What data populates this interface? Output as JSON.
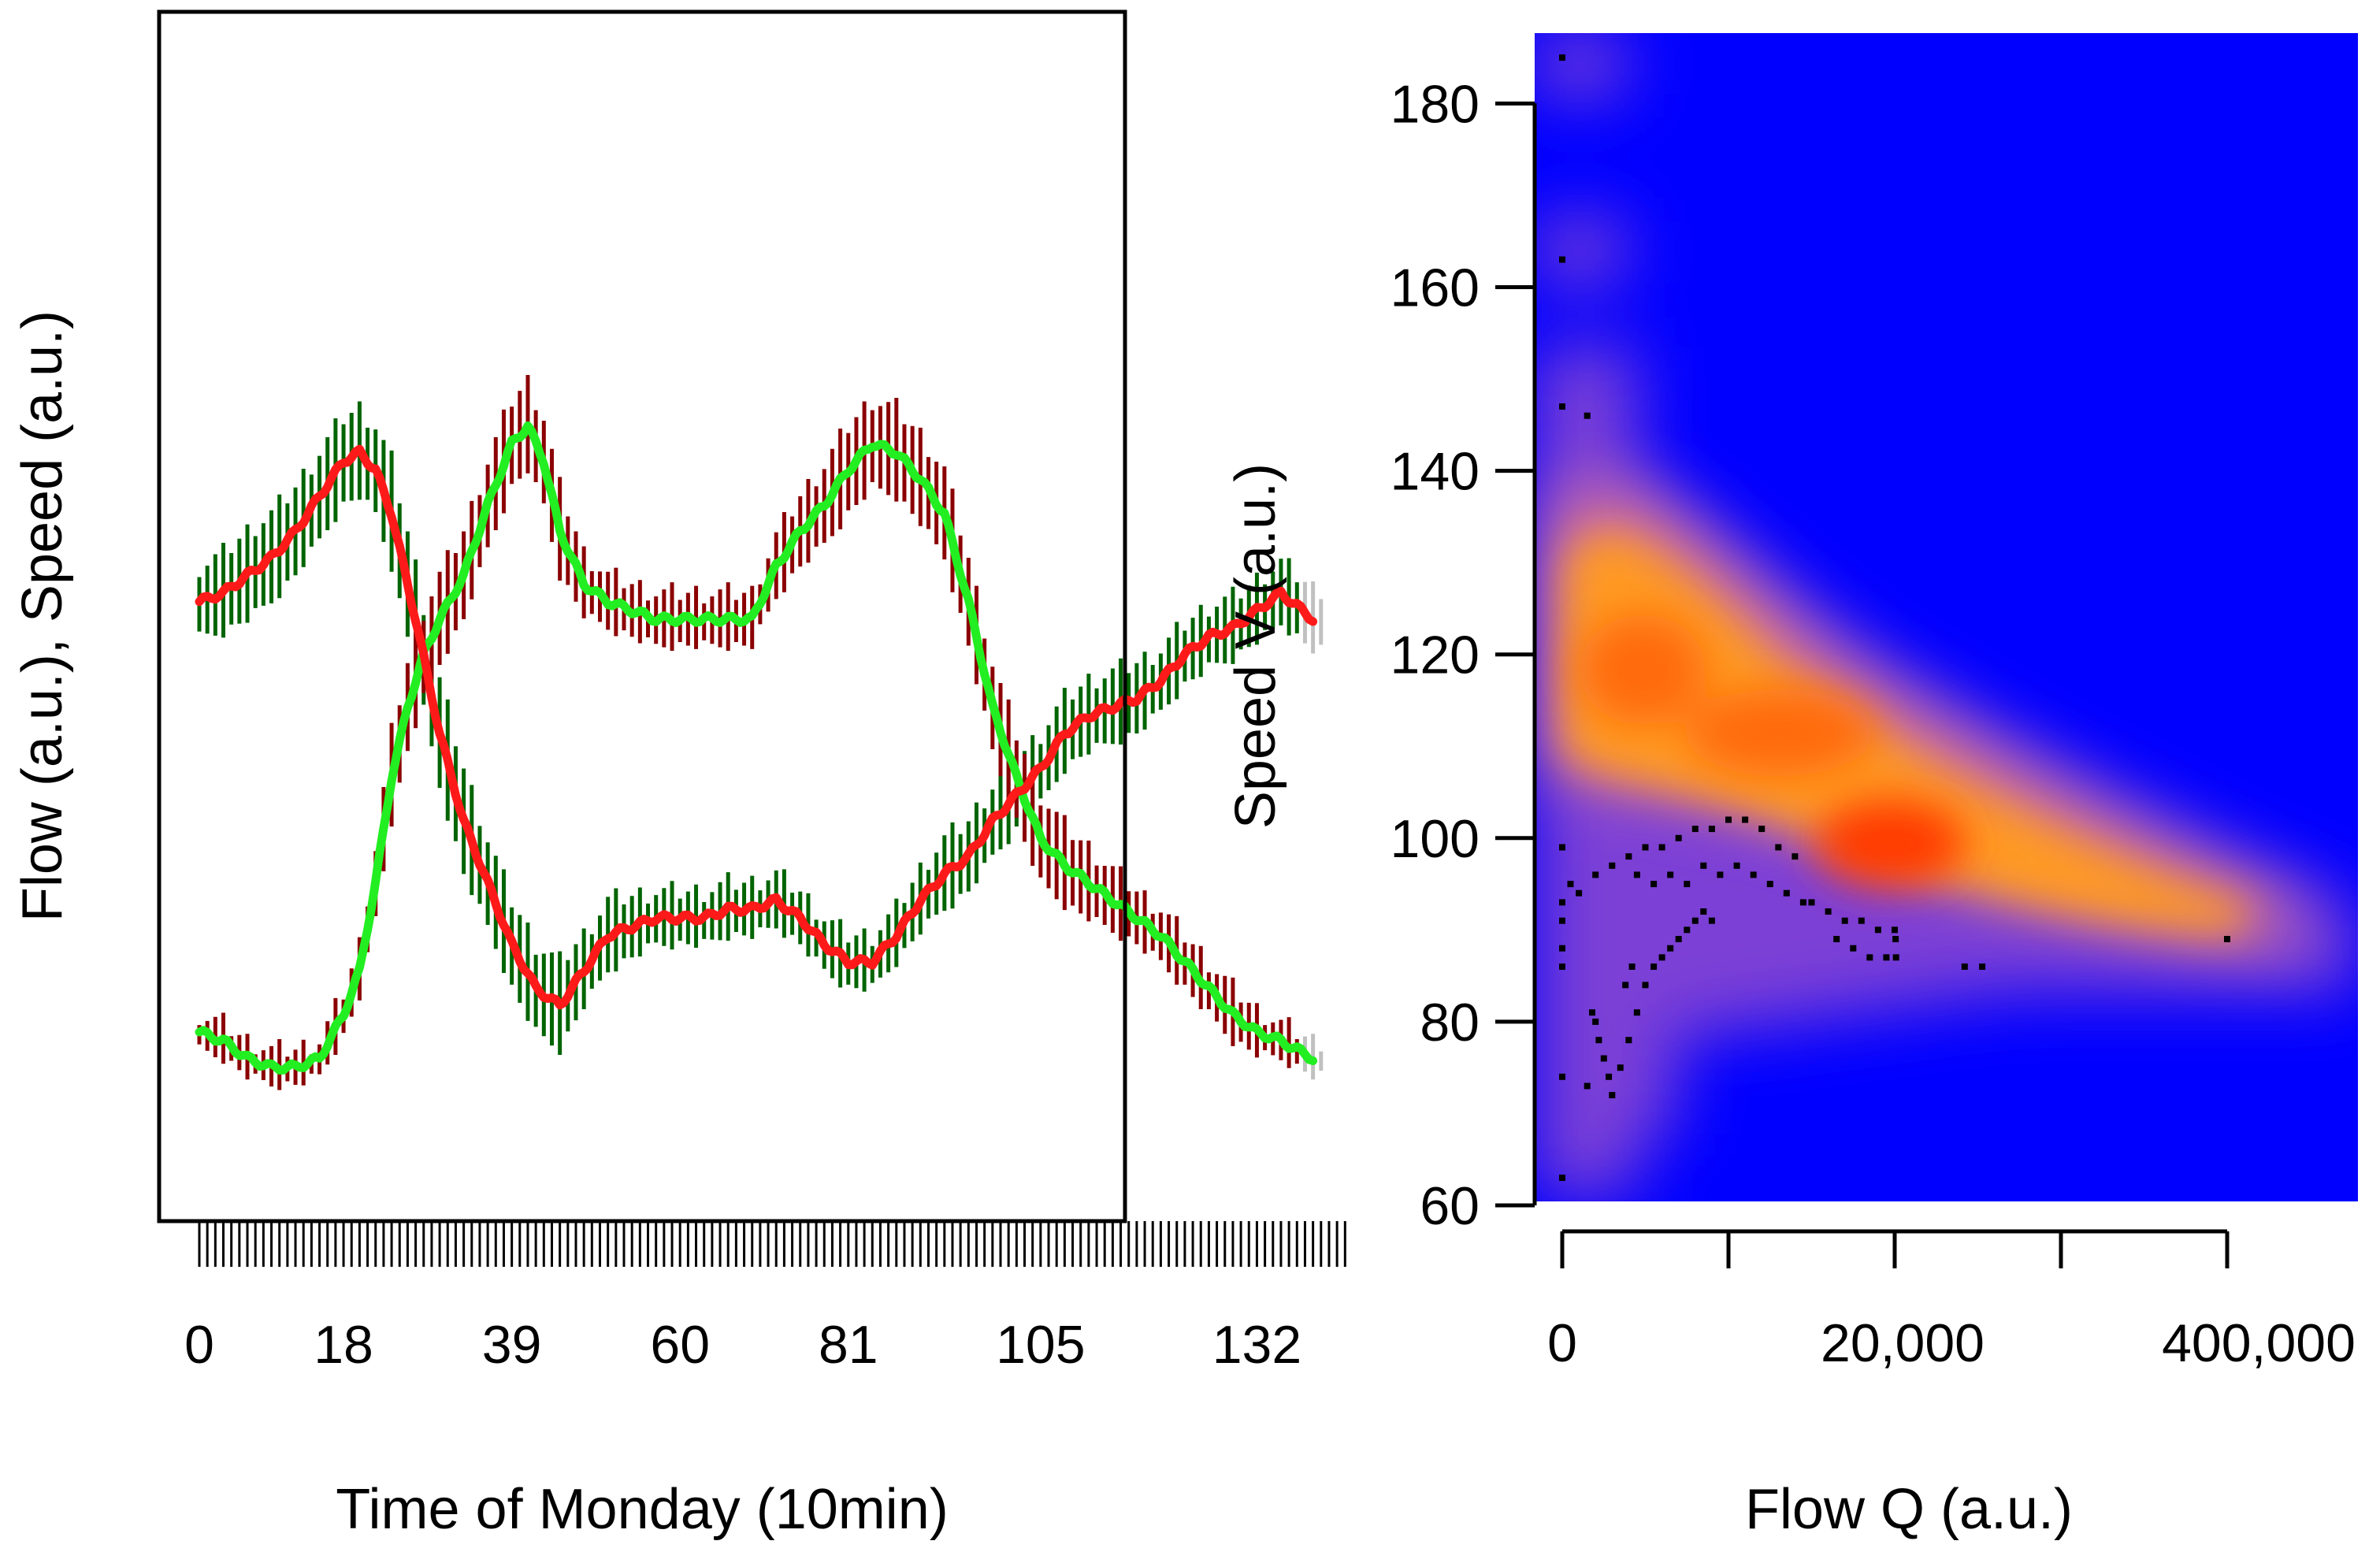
{
  "chart_data": [
    {
      "type": "line",
      "title": "",
      "xlabel": "Time of Monday (10min)",
      "ylabel": "Flow (a.u.), Speed (a.u.)",
      "x_tick_labels": [
        "0",
        "18",
        "39",
        "60",
        "81",
        "105",
        "132"
      ],
      "x_tick_values": [
        0,
        18,
        39,
        60,
        81,
        105,
        132
      ],
      "xlim": [
        -2,
        143
      ],
      "ylim": [
        0,
        1
      ],
      "y_ticks_labeled": false,
      "grid": false,
      "rug": "x",
      "colors": {
        "speed_observed": "#ff1a1a",
        "speed_band": "#006400",
        "flow_observed": "#22ee22",
        "flow_band": "#8b0000",
        "band_tail": "#c0c0c0"
      },
      "series": [
        {
          "key": "speed",
          "x": [
            0,
            3,
            6,
            9,
            12,
            15,
            18,
            20,
            22,
            24,
            27,
            30,
            33,
            36,
            39,
            42,
            45,
            48,
            51,
            54,
            57,
            60,
            63,
            66,
            69,
            72,
            75,
            78,
            81,
            84,
            87,
            90,
            93,
            96,
            99,
            102,
            105,
            108,
            111,
            114,
            117,
            120,
            123,
            126,
            129,
            132,
            135,
            139
          ],
          "y": [
            0.62,
            0.63,
            0.65,
            0.67,
            0.7,
            0.74,
            0.78,
            0.79,
            0.77,
            0.72,
            0.6,
            0.47,
            0.37,
            0.3,
            0.23,
            0.18,
            0.16,
            0.2,
            0.24,
            0.25,
            0.26,
            0.26,
            0.26,
            0.27,
            0.27,
            0.28,
            0.26,
            0.23,
            0.21,
            0.21,
            0.24,
            0.28,
            0.31,
            0.33,
            0.37,
            0.4,
            0.43,
            0.47,
            0.49,
            0.5,
            0.51,
            0.53,
            0.56,
            0.58,
            0.59,
            0.61,
            0.63,
            0.6
          ],
          "band_halfwidth": [
            0.04,
            0.045,
            0.05,
            0.05,
            0.05,
            0.05,
            0.05,
            0.05,
            0.05,
            0.06,
            0.06,
            0.06,
            0.06,
            0.05,
            0.05,
            0.05,
            0.05,
            0.04,
            0.04,
            0.035,
            0.03,
            0.03,
            0.03,
            0.03,
            0.03,
            0.03,
            0.03,
            0.03,
            0.03,
            0.03,
            0.03,
            0.035,
            0.04,
            0.04,
            0.04,
            0.04,
            0.04,
            0.04,
            0.04,
            0.04,
            0.04,
            0.035,
            0.035,
            0.035,
            0.035,
            0.035,
            0.035,
            0.035
          ]
        },
        {
          "key": "flow",
          "x": [
            0,
            3,
            6,
            9,
            12,
            15,
            18,
            20,
            22,
            24,
            26,
            28,
            30,
            33,
            36,
            39,
            41,
            43,
            45,
            48,
            51,
            54,
            57,
            60,
            63,
            66,
            69,
            72,
            75,
            78,
            81,
            84,
            87,
            90,
            93,
            96,
            99,
            102,
            105,
            108,
            111,
            114,
            117,
            120,
            123,
            126,
            129,
            132,
            135,
            139
          ],
          "y": [
            0.13,
            0.12,
            0.1,
            0.09,
            0.09,
            0.1,
            0.15,
            0.2,
            0.3,
            0.42,
            0.5,
            0.56,
            0.6,
            0.65,
            0.73,
            0.8,
            0.82,
            0.78,
            0.7,
            0.64,
            0.62,
            0.61,
            0.6,
            0.6,
            0.6,
            0.6,
            0.6,
            0.66,
            0.7,
            0.73,
            0.77,
            0.8,
            0.79,
            0.76,
            0.72,
            0.62,
            0.5,
            0.42,
            0.35,
            0.32,
            0.3,
            0.28,
            0.26,
            0.24,
            0.21,
            0.18,
            0.15,
            0.13,
            0.12,
            0.1
          ],
          "band_halfwidth": [
            0.02,
            0.02,
            0.02,
            0.02,
            0.02,
            0.02,
            0.025,
            0.03,
            0.04,
            0.05,
            0.05,
            0.05,
            0.05,
            0.05,
            0.05,
            0.05,
            0.05,
            0.05,
            0.05,
            0.035,
            0.03,
            0.03,
            0.03,
            0.03,
            0.03,
            0.03,
            0.03,
            0.035,
            0.04,
            0.045,
            0.05,
            0.05,
            0.05,
            0.05,
            0.05,
            0.05,
            0.05,
            0.05,
            0.05,
            0.045,
            0.04,
            0.035,
            0.03,
            0.03,
            0.03,
            0.03,
            0.03,
            0.025,
            0.02,
            0.02
          ]
        }
      ]
    },
    {
      "type": "heatmap",
      "title": "",
      "xlabel": "Flow Q (a.u.)",
      "ylabel": "Speed V (a.u.)",
      "x_tick_labels": [
        "0",
        "",
        "",
        "20,000",
        "",
        "",
        "400,000"
      ],
      "y_ticks": [
        60,
        80,
        100,
        120,
        140,
        160,
        180
      ],
      "ylim": [
        60,
        188
      ],
      "x_scale": "nonlinear",
      "colormap": [
        "#0000ff",
        "#7b3fd6",
        "#c070c0",
        "#ff9a20",
        "#ff6a10",
        "#ff2a00"
      ],
      "background": "#0000ff",
      "density_peak": {
        "x": 20000,
        "y": 99
      },
      "points": [
        [
          0,
          185
        ],
        [
          0,
          163
        ],
        [
          0,
          147
        ],
        [
          1500,
          146
        ],
        [
          0,
          99
        ],
        [
          500,
          95
        ],
        [
          1000,
          94
        ],
        [
          0,
          93
        ],
        [
          0,
          91
        ],
        [
          0,
          88
        ],
        [
          0,
          86
        ],
        [
          0,
          74
        ],
        [
          0,
          63
        ],
        [
          2000,
          96
        ],
        [
          3000,
          97
        ],
        [
          4000,
          98
        ],
        [
          5000,
          99
        ],
        [
          6000,
          99
        ],
        [
          7000,
          100
        ],
        [
          8000,
          101
        ],
        [
          9000,
          101
        ],
        [
          10000,
          102
        ],
        [
          11000,
          102
        ],
        [
          12000,
          101
        ],
        [
          13000,
          99
        ],
        [
          14000,
          98
        ],
        [
          4500,
          96
        ],
        [
          5500,
          95
        ],
        [
          6500,
          96
        ],
        [
          7500,
          95
        ],
        [
          8500,
          97
        ],
        [
          9500,
          96
        ],
        [
          10500,
          97
        ],
        [
          11500,
          96
        ],
        [
          12500,
          95
        ],
        [
          13500,
          94
        ],
        [
          14500,
          93
        ],
        [
          15000,
          93
        ],
        [
          16000,
          92
        ],
        [
          17000,
          91
        ],
        [
          18000,
          91
        ],
        [
          19000,
          90
        ],
        [
          20000,
          90
        ],
        [
          21000,
          89
        ],
        [
          16500,
          89
        ],
        [
          17500,
          88
        ],
        [
          18500,
          87
        ],
        [
          19500,
          87
        ],
        [
          21500,
          87
        ],
        [
          2000,
          80
        ],
        [
          2200,
          78
        ],
        [
          2500,
          76
        ],
        [
          2800,
          74
        ],
        [
          3000,
          72
        ],
        [
          3500,
          75
        ],
        [
          4000,
          78
        ],
        [
          4500,
          81
        ],
        [
          5000,
          84
        ],
        [
          5500,
          86
        ],
        [
          6000,
          87
        ],
        [
          6500,
          88
        ],
        [
          7000,
          89
        ],
        [
          7500,
          90
        ],
        [
          8000,
          91
        ],
        [
          8500,
          92
        ],
        [
          9000,
          91
        ],
        [
          1500,
          73
        ],
        [
          1800,
          81
        ],
        [
          3800,
          84
        ],
        [
          4200,
          86
        ],
        [
          100000,
          86
        ],
        [
          120000,
          86
        ],
        [
          400000,
          89
        ]
      ]
    }
  ]
}
